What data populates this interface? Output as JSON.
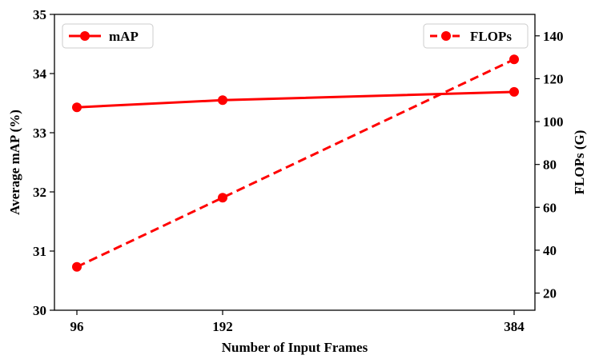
{
  "chart_data": {
    "type": "line",
    "xlabel": "Number of Input Frames",
    "ylabel_left": "Average mAP (%)",
    "ylabel_right": "FLOPs (G)",
    "categories": [
      "96",
      "192",
      "384"
    ],
    "series": [
      {
        "name": "mAP",
        "axis": "left",
        "values": [
          33.43,
          33.55,
          33.69
        ],
        "color": "#ff0000",
        "line_style": "solid",
        "marker": "circle"
      },
      {
        "name": "FLOPs",
        "axis": "right",
        "values": [
          32.2,
          64.5,
          129.0
        ],
        "color": "#ff0000",
        "line_style": "dashed",
        "marker": "circle"
      }
    ],
    "ylim_left": [
      30,
      35
    ],
    "yticks_left": [
      "30",
      "31",
      "32",
      "33",
      "34",
      "35"
    ],
    "ylim_right": [
      12,
      150
    ],
    "yticks_right": [
      "20",
      "40",
      "60",
      "80",
      "100",
      "120",
      "140"
    ],
    "grid": false,
    "legend": {
      "left_series": "top-left",
      "right_series": "top-right"
    }
  }
}
